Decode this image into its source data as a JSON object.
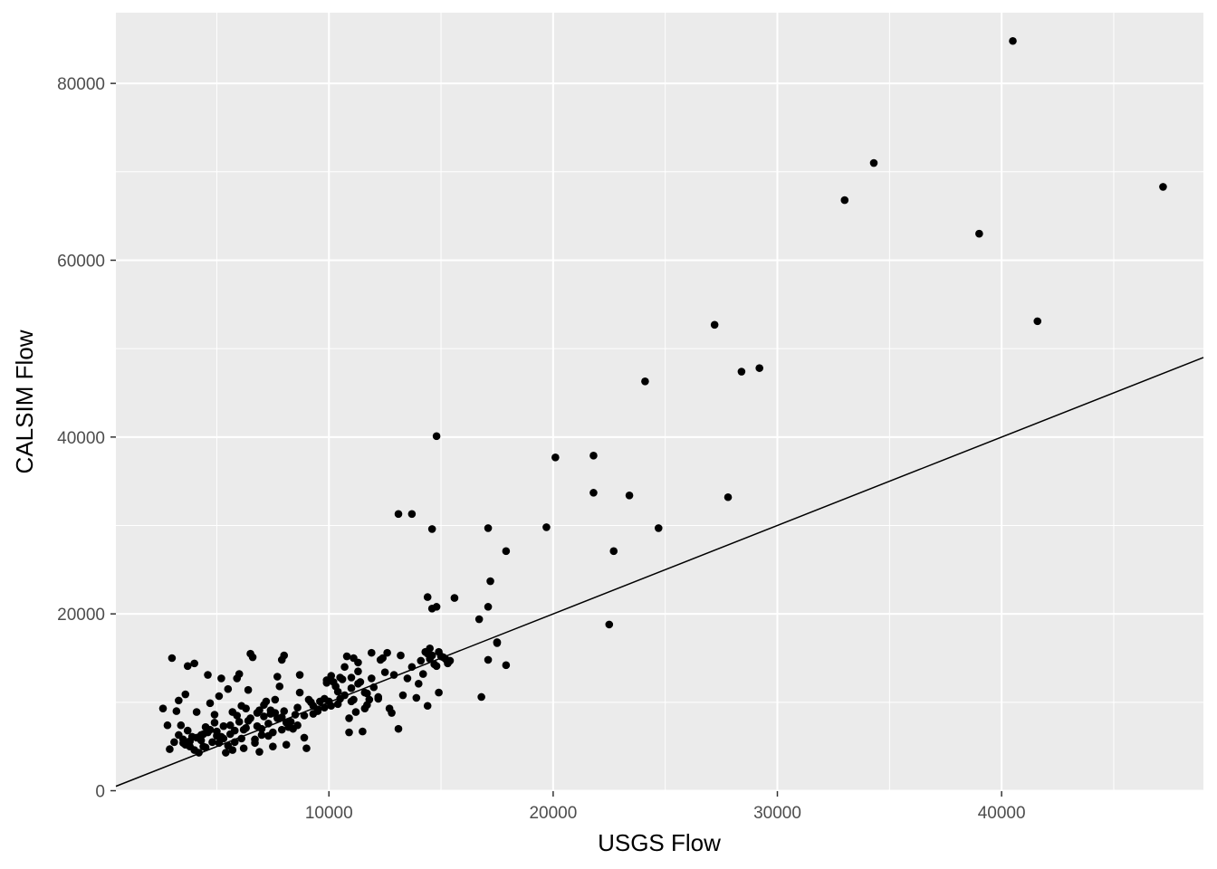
{
  "chart_data": {
    "type": "scatter",
    "title": "",
    "xlabel": "USGS Flow",
    "ylabel": "CALSIM Flow",
    "xlim": [
      500,
      49000
    ],
    "ylim": [
      -50,
      88000
    ],
    "x_ticks": [
      10000,
      20000,
      30000,
      40000
    ],
    "x_tick_labels": [
      "10000",
      "20000",
      "30000",
      "40000"
    ],
    "y_ticks": [
      0,
      20000,
      40000,
      60000,
      80000
    ],
    "y_tick_labels": [
      "0",
      "20000",
      "40000",
      "60000",
      "80000"
    ],
    "grid": true,
    "panel_background": "#ebebeb",
    "grid_color": "#ffffff",
    "point_color": "#000000",
    "reference_line": {
      "slope": 1,
      "intercept": 0,
      "label": "1:1 line"
    },
    "series": [
      {
        "points": [
          [
            40500,
            84800
          ],
          [
            34300,
            71000
          ],
          [
            33000,
            66800
          ],
          [
            47200,
            68300
          ],
          [
            39000,
            63000
          ],
          [
            41600,
            53100
          ],
          [
            27200,
            52700
          ],
          [
            29200,
            47800
          ],
          [
            28400,
            47400
          ],
          [
            24100,
            46300
          ],
          [
            14800,
            40100
          ],
          [
            20100,
            37700
          ],
          [
            21800,
            37900
          ],
          [
            21800,
            33700
          ],
          [
            23400,
            33400
          ],
          [
            27800,
            33200
          ],
          [
            13700,
            31300
          ],
          [
            14600,
            29600
          ],
          [
            17100,
            29700
          ],
          [
            19700,
            29800
          ],
          [
            24700,
            29700
          ],
          [
            17900,
            27100
          ],
          [
            22700,
            27100
          ],
          [
            17200,
            23700
          ],
          [
            14400,
            21900
          ],
          [
            15600,
            21800
          ],
          [
            14800,
            20800
          ],
          [
            14600,
            20600
          ],
          [
            17100,
            20800
          ],
          [
            16700,
            19400
          ],
          [
            22500,
            18800
          ],
          [
            17500,
            16800
          ],
          [
            17500,
            16700
          ],
          [
            17900,
            14200
          ],
          [
            17100,
            14800
          ],
          [
            16800,
            10600
          ],
          [
            14900,
            11100
          ],
          [
            14400,
            9600
          ],
          [
            13100,
            31300
          ],
          [
            14300,
            15700
          ],
          [
            14500,
            16100
          ],
          [
            14600,
            15300
          ],
          [
            14900,
            15700
          ],
          [
            15000,
            15200
          ],
          [
            15200,
            14900
          ],
          [
            15400,
            14700
          ],
          [
            14700,
            14300
          ],
          [
            14400,
            15500
          ],
          [
            14100,
            14700
          ],
          [
            14000,
            12100
          ],
          [
            13900,
            10500
          ],
          [
            13300,
            10800
          ],
          [
            13200,
            15300
          ],
          [
            13100,
            7000
          ],
          [
            12900,
            13100
          ],
          [
            12800,
            8800
          ],
          [
            12700,
            9300
          ],
          [
            12600,
            15600
          ],
          [
            12400,
            15000
          ],
          [
            12200,
            10600
          ],
          [
            12000,
            11700
          ],
          [
            11900,
            15600
          ],
          [
            11800,
            10300
          ],
          [
            11700,
            11000
          ],
          [
            11600,
            9300
          ],
          [
            11500,
            6700
          ],
          [
            11400,
            12300
          ],
          [
            11300,
            14500
          ],
          [
            11300,
            13500
          ],
          [
            11200,
            8900
          ],
          [
            11100,
            15000
          ],
          [
            11000,
            12800
          ],
          [
            11000,
            10100
          ],
          [
            10900,
            6600
          ],
          [
            10900,
            8200
          ],
          [
            10800,
            15200
          ],
          [
            10700,
            14000
          ],
          [
            10600,
            12600
          ],
          [
            10500,
            10400
          ],
          [
            10400,
            9800
          ],
          [
            10300,
            11800
          ],
          [
            10200,
            12300
          ],
          [
            10100,
            13000
          ],
          [
            10000,
            10100
          ],
          [
            9900,
            12500
          ],
          [
            9800,
            9400
          ],
          [
            9600,
            10100
          ],
          [
            9500,
            9000
          ],
          [
            9300,
            9600
          ],
          [
            9100,
            10300
          ],
          [
            9000,
            4800
          ],
          [
            8900,
            6000
          ],
          [
            8700,
            13100
          ],
          [
            8600,
            7400
          ],
          [
            8500,
            8600
          ],
          [
            8400,
            7000
          ],
          [
            8200,
            7200
          ],
          [
            8100,
            5200
          ],
          [
            8000,
            15300
          ],
          [
            7900,
            14800
          ],
          [
            7900,
            8300
          ],
          [
            7800,
            11800
          ],
          [
            7700,
            12900
          ],
          [
            7600,
            10300
          ],
          [
            7500,
            5000
          ],
          [
            7400,
            8700
          ],
          [
            7300,
            7600
          ],
          [
            7200,
            10100
          ],
          [
            7100,
            9700
          ],
          [
            7000,
            6300
          ],
          [
            6900,
            4400
          ],
          [
            6800,
            8800
          ],
          [
            6700,
            5800
          ],
          [
            6600,
            15100
          ],
          [
            6500,
            15500
          ],
          [
            6400,
            11400
          ],
          [
            6300,
            7100
          ],
          [
            6200,
            4800
          ],
          [
            6100,
            9600
          ],
          [
            6000,
            13200
          ],
          [
            5900,
            12700
          ],
          [
            5800,
            5500
          ],
          [
            5700,
            8900
          ],
          [
            5600,
            6400
          ],
          [
            5500,
            11500
          ],
          [
            5400,
            4300
          ],
          [
            5300,
            7300
          ],
          [
            5200,
            12700
          ],
          [
            5100,
            10700
          ],
          [
            5000,
            6700
          ],
          [
            4900,
            8600
          ],
          [
            4800,
            5500
          ],
          [
            4700,
            9900
          ],
          [
            4600,
            13100
          ],
          [
            4500,
            7200
          ],
          [
            4400,
            5000
          ],
          [
            4300,
            6300
          ],
          [
            4200,
            4300
          ],
          [
            4100,
            8900
          ],
          [
            4000,
            14400
          ],
          [
            3900,
            6100
          ],
          [
            3800,
            5000
          ],
          [
            3700,
            14100
          ],
          [
            3600,
            10900
          ],
          [
            3500,
            5400
          ],
          [
            3400,
            7400
          ],
          [
            3300,
            10200
          ],
          [
            3200,
            9000
          ],
          [
            3100,
            5500
          ],
          [
            3000,
            15000
          ],
          [
            2900,
            4700
          ],
          [
            2800,
            7400
          ],
          [
            2600,
            9300
          ],
          [
            3500,
            5800
          ],
          [
            3800,
            5600
          ],
          [
            4100,
            6000
          ],
          [
            4400,
            6400
          ],
          [
            4700,
            6900
          ],
          [
            5000,
            6200
          ],
          [
            5300,
            5900
          ],
          [
            5600,
            7400
          ],
          [
            5900,
            8500
          ],
          [
            6200,
            6900
          ],
          [
            6500,
            8200
          ],
          [
            6800,
            7300
          ],
          [
            7100,
            8400
          ],
          [
            7400,
            9100
          ],
          [
            7700,
            8200
          ],
          [
            8000,
            9000
          ],
          [
            8300,
            7800
          ],
          [
            8600,
            9400
          ],
          [
            8900,
            8500
          ],
          [
            9200,
            10000
          ],
          [
            9500,
            9200
          ],
          [
            9800,
            10400
          ],
          [
            10100,
            9600
          ],
          [
            10400,
            11200
          ],
          [
            10700,
            10800
          ],
          [
            11000,
            11600
          ],
          [
            11300,
            12100
          ],
          [
            11600,
            11100
          ],
          [
            11900,
            12700
          ],
          [
            12200,
            10400
          ],
          [
            3600,
            5200
          ],
          [
            4000,
            4600
          ],
          [
            4300,
            5700
          ],
          [
            4600,
            6600
          ],
          [
            4900,
            7700
          ],
          [
            5200,
            6100
          ],
          [
            5500,
            5100
          ],
          [
            5800,
            6800
          ],
          [
            6100,
            5900
          ],
          [
            6400,
            7900
          ],
          [
            6700,
            5400
          ],
          [
            7000,
            7000
          ],
          [
            7300,
            6200
          ],
          [
            7600,
            8800
          ],
          [
            7900,
            6900
          ],
          [
            3300,
            6300
          ],
          [
            3700,
            6800
          ],
          [
            4500,
            4900
          ],
          [
            5100,
            5400
          ],
          [
            5700,
            4600
          ],
          [
            6000,
            7800
          ],
          [
            6300,
            9300
          ],
          [
            6900,
            9100
          ],
          [
            7500,
            6600
          ],
          [
            8100,
            7700
          ],
          [
            8700,
            11100
          ],
          [
            9300,
            8700
          ],
          [
            9900,
            12200
          ],
          [
            10500,
            12800
          ],
          [
            11100,
            10300
          ],
          [
            11700,
            9700
          ],
          [
            12300,
            14800
          ],
          [
            12500,
            13400
          ],
          [
            13500,
            12700
          ],
          [
            13700,
            14000
          ],
          [
            14200,
            13200
          ],
          [
            14800,
            14100
          ],
          [
            15100,
            15100
          ],
          [
            15300,
            14400
          ],
          [
            14500,
            14900
          ]
        ]
      }
    ]
  }
}
